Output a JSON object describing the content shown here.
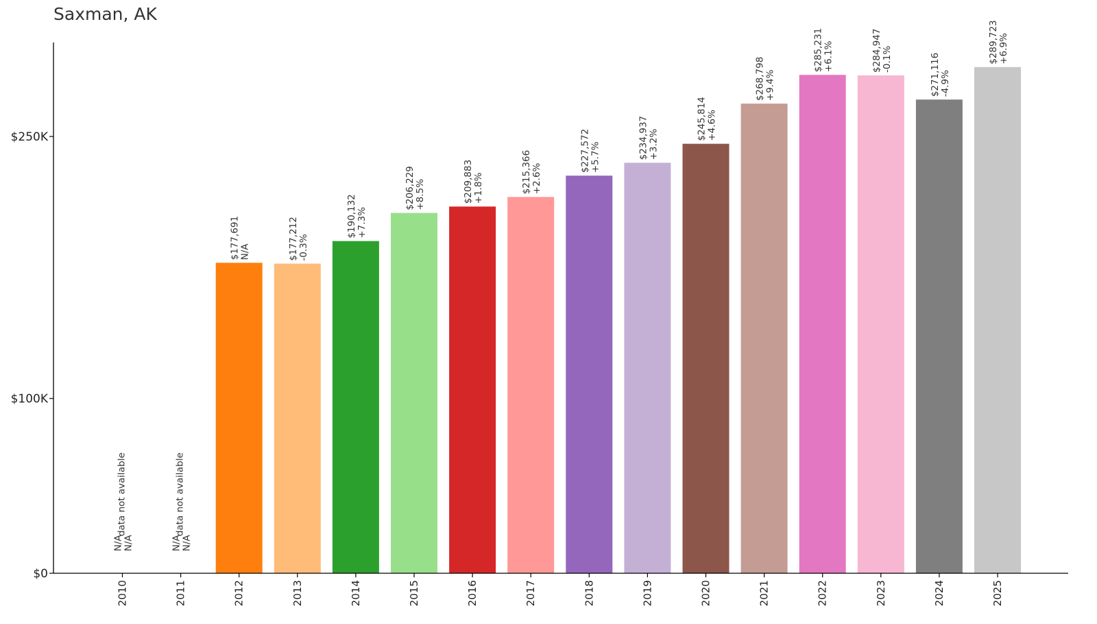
{
  "chart_data": {
    "type": "bar",
    "title": "Saxman, AK",
    "xlabel": "",
    "ylabel": "",
    "ylim": [
      0,
      300000
    ],
    "grid": false,
    "yticks": [
      {
        "value": 0,
        "label": "$0"
      },
      {
        "value": 100000,
        "label": "$100K"
      },
      {
        "value": 250000,
        "label": "$250K"
      }
    ],
    "categories": [
      "2010",
      "2011",
      "2012",
      "2013",
      "2014",
      "2015",
      "2016",
      "2017",
      "2018",
      "2019",
      "2020",
      "2021",
      "2022",
      "2023",
      "2024",
      "2025"
    ],
    "values": [
      null,
      null,
      177691,
      177212,
      190132,
      206229,
      209883,
      215366,
      227572,
      234937,
      245814,
      268798,
      285231,
      284947,
      271116,
      289723
    ],
    "value_labels": [
      "N/A",
      "N/A",
      "$177,691",
      "$177,212",
      "$190,132",
      "$206,229",
      "$209,883",
      "$215,366",
      "$227,572",
      "$234,937",
      "$245,814",
      "$268,798",
      "$285,231",
      "$284,947",
      "$271,116",
      "$289,723"
    ],
    "change_labels": [
      "N/A",
      "N/A",
      "N/A",
      "-0.3%",
      "+7.3%",
      "+8.5%",
      "+1.8%",
      "+2.6%",
      "+5.7%",
      "+3.2%",
      "+4.6%",
      "+9.4%",
      "+6.1%",
      "-0.1%",
      "-4.9%",
      "+6.9%"
    ],
    "missing_note": "data not available",
    "colors": [
      "#1f77b4",
      "#aec7e8",
      "#ff7f0e",
      "#ffbb78",
      "#2ca02c",
      "#98df8a",
      "#d62728",
      "#ff9896",
      "#9467bd",
      "#c5b0d5",
      "#8c564b",
      "#c49c94",
      "#e377c2",
      "#f7b6d2",
      "#7f7f7f",
      "#c7c7c7"
    ]
  }
}
